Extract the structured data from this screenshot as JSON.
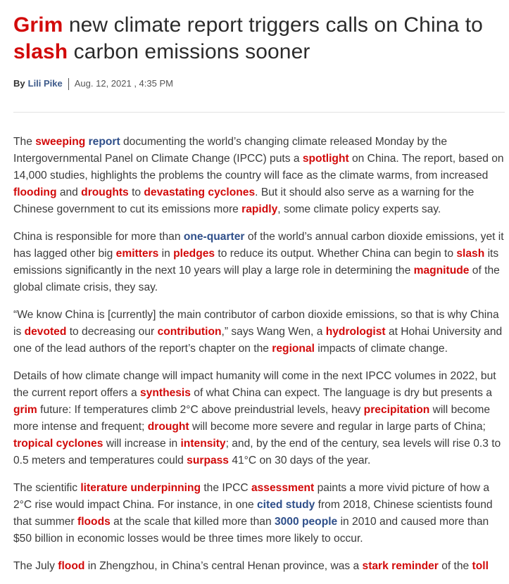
{
  "headline": {
    "w1": "Grim",
    "t1": " new climate report triggers calls on China to ",
    "w2": "slash",
    "t2": " carbon emissions sooner"
  },
  "byline": {
    "by": "By",
    "author": "Lili Pike",
    "date": "Aug. 12, 2021 , 4:35 PM"
  },
  "colors": {
    "keyword_red": "#d20a0a",
    "link_blue": "#2f4f8a",
    "text": "#3a3a3a"
  },
  "p1": {
    "t0": "The ",
    "k1": "sweeping",
    "t1": " ",
    "l1": "report",
    "t2": " documenting the world’s changing climate released Monday by the Intergovernmental Panel on Climate Change (IPCC) puts a ",
    "k2": "spotlight",
    "t3": " on China. The report, based on 14,000 studies, highlights the problems the country will face as the climate warms, from increased ",
    "k3": "flooding",
    "t4": " and ",
    "k4": "droughts",
    "t5": " to ",
    "k5": "devastating cyclones",
    "t6": ". But it should also serve as a warning for the Chinese government to cut its emissions more ",
    "k6": "rapidly",
    "t7": ", some climate policy experts say."
  },
  "p2": {
    "t0": "China is responsible for more than ",
    "l1": "one-quarter",
    "t1": " of the world’s annual carbon dioxide emissions, yet it has lagged other big ",
    "k1": "emitters",
    "t2": " in ",
    "k2": "pledges",
    "t3": " to reduce its output. Whether China can begin to ",
    "k3": "slash",
    "t4": " its emissions significantly in the next 10 years will play a large role in determining the ",
    "k4": "magnitude",
    "t5": " of the global climate crisis, they say."
  },
  "p3": {
    "t0": "“We know China is [currently] the main contributor of carbon dioxide emissions, so that is why China is ",
    "k1": "devoted",
    "t1": " to decreasing our ",
    "k2": "contribution",
    "t2": ",” says Wang Wen, a ",
    "k3": "hydrologist",
    "t3": " at Hohai University and one of the lead authors of the report’s chapter on the ",
    "k4": "regional",
    "t4": " impacts of climate change."
  },
  "p4": {
    "t0": "Details of how climate change will impact humanity will come in the next IPCC volumes in 2022, but the current report offers a ",
    "k1": "synthesis",
    "t1": " of what China can expect. The language is dry but presents a ",
    "k2": "grim",
    "t2": " future: If temperatures climb 2°C above preindustrial levels, heavy ",
    "k3": "precipitation",
    "t3": " will become more intense and frequent; ",
    "k4": "drought",
    "t4": " will become more severe and regular in large parts of China; ",
    "k5": "tropical cyclones",
    "t5": " will increase in ",
    "k6": "intensity",
    "t6": "; and, by the end of the century, sea levels will rise 0.3 to 0.5 meters and temperatures could ",
    "k7": "surpass",
    "t7": " 41°C on 30 days of the year."
  },
  "p5": {
    "t0": "The scientific ",
    "k1": "literature underpinning",
    "t1": " the IPCC ",
    "k2": "assessment",
    "t2": " paints a more vivid picture of how a 2°C rise would impact China. For instance, in one ",
    "l1": "cited study",
    "t3": " from 2018, Chinese scientists found that summer ",
    "k3": "floods",
    "t4": " at the scale that killed more than ",
    "l2": "3000 people",
    "t5": " in 2010 and caused more than $50 billion in economic losses would be three times more likely to occur."
  },
  "p6": {
    "t0": "The July ",
    "k1": "flood",
    "t1": " in Zhengzhou, in China’s central Henan province, was a ",
    "k2": "stark reminder",
    "t2": " of the ",
    "k3": "toll"
  }
}
